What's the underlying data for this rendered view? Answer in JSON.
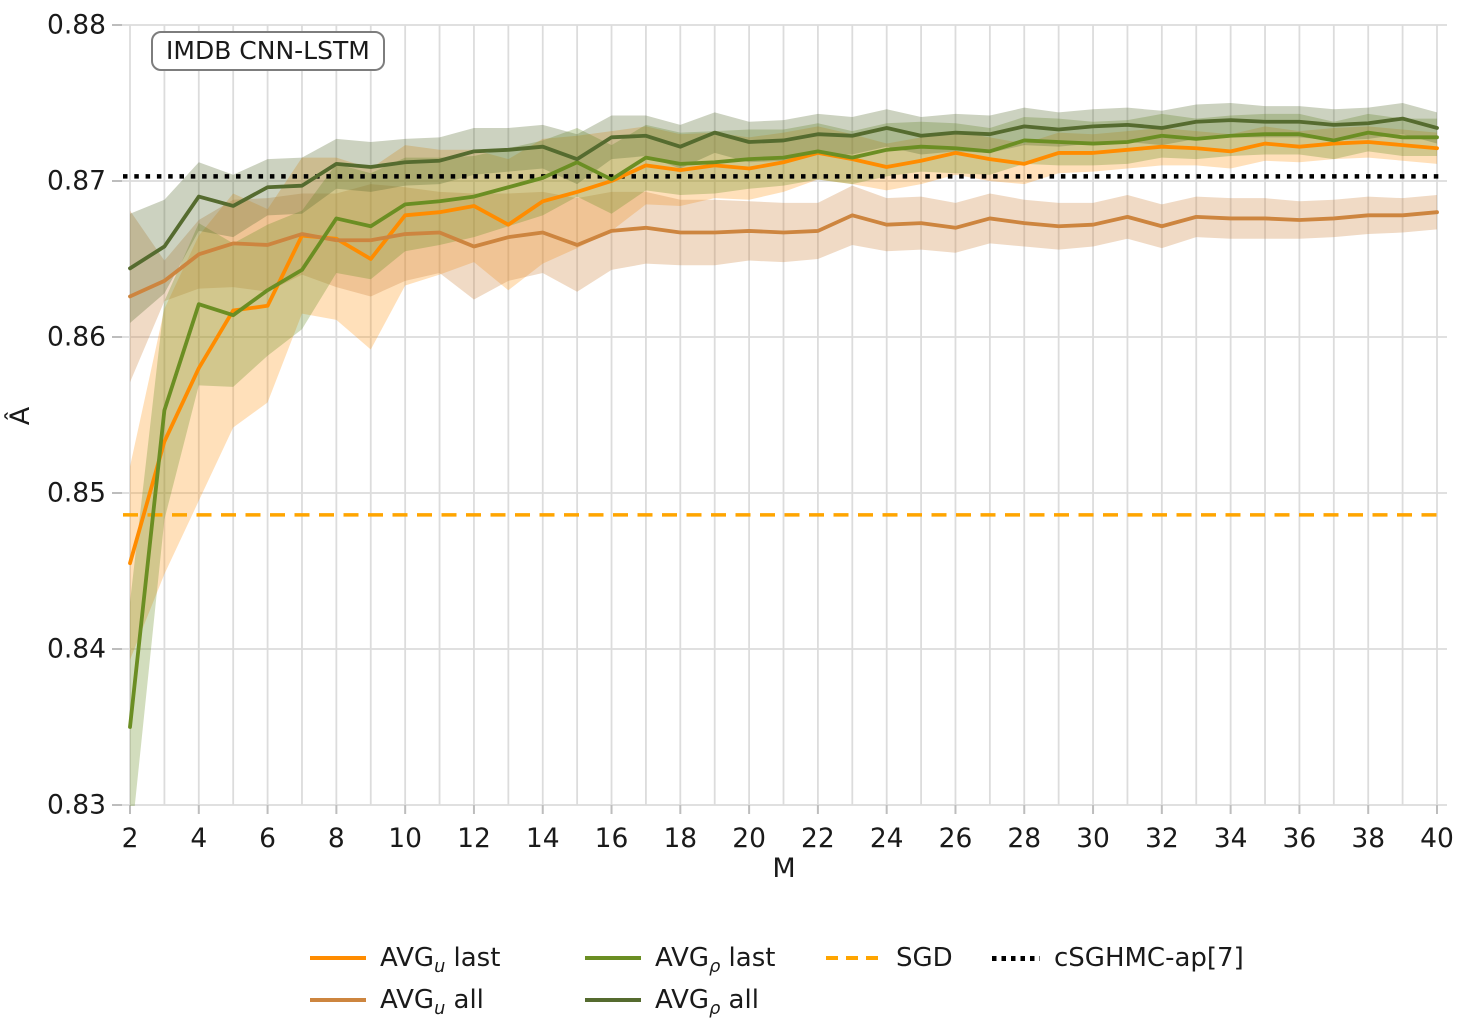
{
  "figure": {
    "annotation": "IMDB CNN-LSTM",
    "x_label": "M",
    "y_label": "Â"
  },
  "chart_data": {
    "type": "line",
    "title": "IMDB CNN-LSTM",
    "xlabel": "M",
    "ylabel": "Â",
    "xlim": [
      2,
      40
    ],
    "ylim": [
      0.83,
      0.88
    ],
    "grid": true,
    "grid_color": "#dcdcdc",
    "x_ticks": [
      2,
      4,
      6,
      8,
      10,
      12,
      14,
      16,
      18,
      20,
      22,
      24,
      26,
      28,
      30,
      32,
      34,
      36,
      38,
      40
    ],
    "y_ticks": [
      0.83,
      0.84,
      0.85,
      0.86,
      0.87,
      0.88
    ],
    "y_tick_labels": [
      "0.83",
      "0.84",
      "0.85",
      "0.86",
      "0.87",
      "0.88"
    ],
    "legend_position": "bottom",
    "x": [
      2,
      3,
      4,
      5,
      6,
      7,
      8,
      9,
      10,
      11,
      12,
      13,
      14,
      15,
      16,
      17,
      18,
      19,
      20,
      21,
      22,
      23,
      24,
      25,
      26,
      27,
      28,
      29,
      30,
      31,
      32,
      33,
      34,
      35,
      36,
      37,
      38,
      39,
      40
    ],
    "series": [
      {
        "name": "AVG_u last",
        "color": "#FF8C00",
        "band_opacity": 0.27,
        "values": [
          0.8455,
          0.8533,
          0.858,
          0.8617,
          0.862,
          0.8665,
          0.8663,
          0.865,
          0.8678,
          0.868,
          0.8684,
          0.8672,
          0.8687,
          0.8693,
          0.87,
          0.871,
          0.8707,
          0.871,
          0.8708,
          0.8712,
          0.8718,
          0.8714,
          0.8709,
          0.8713,
          0.8718,
          0.8714,
          0.8711,
          0.8718,
          0.8718,
          0.872,
          0.8722,
          0.8721,
          0.8719,
          0.8724,
          0.8722,
          0.8724,
          0.8725,
          0.8723,
          0.8721
        ],
        "band": [
          0.0062,
          0.0085,
          0.0085,
          0.0075,
          0.0062,
          0.005,
          0.0052,
          0.0058,
          0.0045,
          0.004,
          0.0036,
          0.0042,
          0.004,
          0.0036,
          0.0032,
          0.0025,
          0.0023,
          0.0021,
          0.002,
          0.0019,
          0.0017,
          0.0016,
          0.0015,
          0.0015,
          0.0014,
          0.0014,
          0.0013,
          0.0013,
          0.0012,
          0.0012,
          0.0012,
          0.0011,
          0.0011,
          0.0011,
          0.001,
          0.001,
          0.001,
          0.001,
          0.001
        ]
      },
      {
        "name": "AVG_u all",
        "color": "#CD853F",
        "band_opacity": 0.3,
        "values": [
          0.8626,
          0.8636,
          0.8653,
          0.866,
          0.8659,
          0.8666,
          0.8662,
          0.8662,
          0.8666,
          0.8667,
          0.8658,
          0.8664,
          0.8667,
          0.8659,
          0.8668,
          0.867,
          0.8667,
          0.8667,
          0.8668,
          0.8667,
          0.8668,
          0.8678,
          0.8672,
          0.8673,
          0.867,
          0.8676,
          0.8673,
          0.8671,
          0.8672,
          0.8677,
          0.8671,
          0.8677,
          0.8676,
          0.8676,
          0.8675,
          0.8676,
          0.8678,
          0.8678,
          0.868
        ],
        "band": [
          0.0055,
          0.0013,
          0.0022,
          0.0028,
          0.003,
          0.0026,
          0.003,
          0.0036,
          0.003,
          0.0026,
          0.0034,
          0.0028,
          0.0026,
          0.003,
          0.0025,
          0.0023,
          0.0021,
          0.0021,
          0.0019,
          0.0019,
          0.0018,
          0.0019,
          0.0017,
          0.0017,
          0.0016,
          0.0016,
          0.0015,
          0.0015,
          0.0014,
          0.0014,
          0.0014,
          0.0013,
          0.0013,
          0.0013,
          0.0012,
          0.0012,
          0.0012,
          0.0011,
          0.0011
        ]
      },
      {
        "name": "AVG_ρ last",
        "color": "#6B8E23",
        "band_opacity": 0.3,
        "values": [
          0.835,
          0.8553,
          0.8621,
          0.8614,
          0.863,
          0.8643,
          0.8676,
          0.8671,
          0.8685,
          0.8687,
          0.869,
          0.8696,
          0.8702,
          0.8712,
          0.8701,
          0.8715,
          0.8711,
          0.8712,
          0.8714,
          0.8715,
          0.8719,
          0.8715,
          0.872,
          0.8722,
          0.8721,
          0.8719,
          0.8726,
          0.8725,
          0.8724,
          0.8725,
          0.8729,
          0.8727,
          0.8729,
          0.873,
          0.873,
          0.8726,
          0.8731,
          0.8728,
          0.8728
        ],
        "band": [
          0.008,
          0.007,
          0.0052,
          0.0046,
          0.0042,
          0.0038,
          0.0035,
          0.0034,
          0.003,
          0.0028,
          0.0026,
          0.0025,
          0.0024,
          0.0022,
          0.0022,
          0.0021,
          0.002,
          0.002,
          0.0019,
          0.0018,
          0.0018,
          0.0017,
          0.0017,
          0.0016,
          0.0016,
          0.0015,
          0.0015,
          0.0015,
          0.0014,
          0.0014,
          0.0014,
          0.0013,
          0.0013,
          0.0013,
          0.0013,
          0.0012,
          0.0012,
          0.0012,
          0.0012
        ]
      },
      {
        "name": "AVG_ρ all",
        "color": "#556B2F",
        "band_opacity": 0.3,
        "values": [
          0.8644,
          0.8658,
          0.869,
          0.8684,
          0.8696,
          0.8697,
          0.8711,
          0.8709,
          0.8712,
          0.8713,
          0.8719,
          0.872,
          0.8722,
          0.8714,
          0.8728,
          0.8729,
          0.8722,
          0.8731,
          0.8725,
          0.8726,
          0.873,
          0.8729,
          0.8734,
          0.8729,
          0.8731,
          0.873,
          0.8735,
          0.8733,
          0.8735,
          0.8736,
          0.8734,
          0.8738,
          0.8739,
          0.8738,
          0.8738,
          0.8736,
          0.8737,
          0.874,
          0.8734
        ],
        "band": [
          0.0035,
          0.003,
          0.0022,
          0.002,
          0.0018,
          0.0018,
          0.0016,
          0.0016,
          0.0015,
          0.0015,
          0.0015,
          0.0014,
          0.0014,
          0.0016,
          0.0014,
          0.0013,
          0.0014,
          0.0013,
          0.0013,
          0.0013,
          0.0013,
          0.0012,
          0.0012,
          0.0012,
          0.0012,
          0.0012,
          0.0012,
          0.0011,
          0.0011,
          0.0011,
          0.0011,
          0.0011,
          0.0011,
          0.001,
          0.001,
          0.001,
          0.001,
          0.001,
          0.001
        ]
      }
    ],
    "reference_lines": [
      {
        "name": "SGD",
        "value": 0.8486,
        "style": "dashed",
        "color": "#FFA500"
      },
      {
        "name": "cSGHMC-ap[7]",
        "value": 0.8703,
        "style": "dotted",
        "color": "#000000"
      }
    ]
  },
  "legend": {
    "items": [
      {
        "id": "avg-u-last",
        "base": "AVG",
        "sub": "u",
        "suffix": " last",
        "color": "#FF8C00",
        "style": "solid",
        "row": 1,
        "col": 1
      },
      {
        "id": "avg-rho-last",
        "base": "AVG",
        "sub": "ρ",
        "suffix": " last",
        "color": "#6B8E23",
        "style": "solid",
        "row": 1,
        "col": 2
      },
      {
        "id": "sgd",
        "base": "SGD",
        "sub": "",
        "suffix": "",
        "color": "#FFA500",
        "style": "dashed",
        "row": 1,
        "col": 3
      },
      {
        "id": "csghmc-ap7",
        "base": "cSGHMC-ap[7]",
        "sub": "",
        "suffix": "",
        "color": "#000000",
        "style": "dotted",
        "row": 1,
        "col": 4
      },
      {
        "id": "avg-u-all",
        "base": "AVG",
        "sub": "u",
        "suffix": " all",
        "color": "#CD853F",
        "style": "solid",
        "row": 2,
        "col": 1
      },
      {
        "id": "avg-rho-all",
        "base": "AVG",
        "sub": "ρ",
        "suffix": " all",
        "color": "#556B2F",
        "style": "solid",
        "row": 2,
        "col": 2
      }
    ]
  }
}
